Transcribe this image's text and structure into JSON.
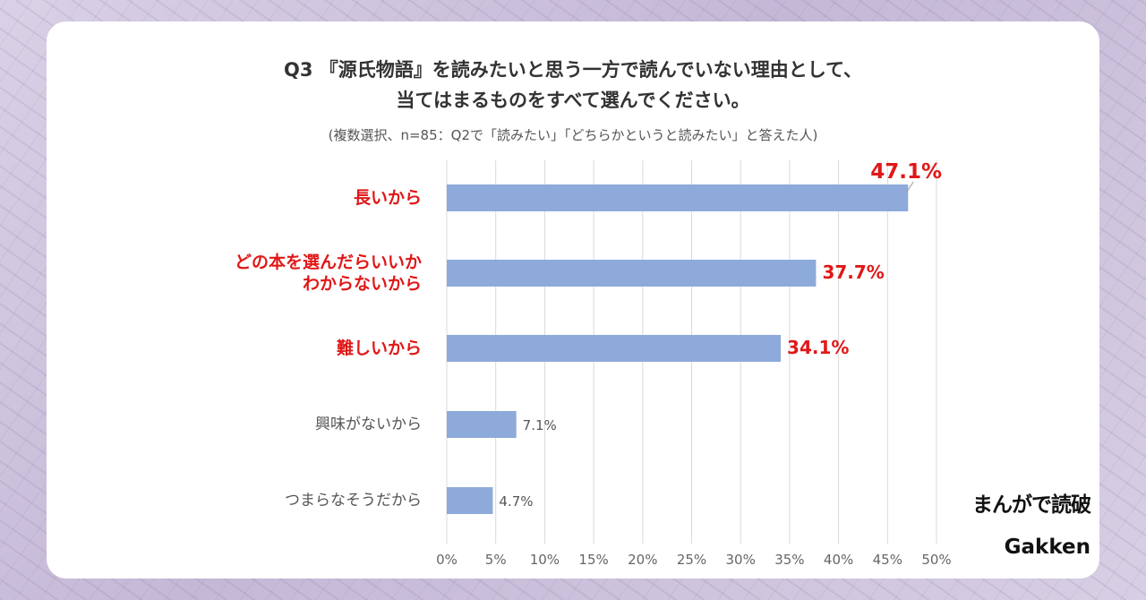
{
  "header": {
    "title_line1": "Q3 『源氏物語』を読みたいと思う一方で読んでいない理由として、",
    "title_line2": "当てはまるものをすべて選んでください。",
    "subtitle": "(複数選択、n=85：Q2で「読みたい」「どちらかというと読みたい」と答えた人)"
  },
  "chart_data": {
    "type": "bar",
    "orientation": "horizontal",
    "categories": [
      "長いから",
      "どの本を選んだらいいか\nわからないから",
      "難しいから",
      "興味がないから",
      "つまらなそうだから"
    ],
    "values": [
      47.1,
      37.7,
      34.1,
      7.1,
      4.7
    ],
    "value_labels": [
      "47.1%",
      "37.7%",
      "34.1%",
      "7.1%",
      "4.7%"
    ],
    "highlighted": [
      true,
      true,
      true,
      false,
      false
    ],
    "x_ticks": [
      "0%",
      "5%",
      "10%",
      "15%",
      "20%",
      "25%",
      "30%",
      "35%",
      "40%",
      "45%",
      "50%"
    ],
    "xlim": [
      0,
      50
    ],
    "grid": true,
    "bar_color": "#8eaadb",
    "highlight_color": "#e01818"
  },
  "branding": {
    "logo_manga": "まんがで読破",
    "logo_gakken": "Gakken"
  }
}
